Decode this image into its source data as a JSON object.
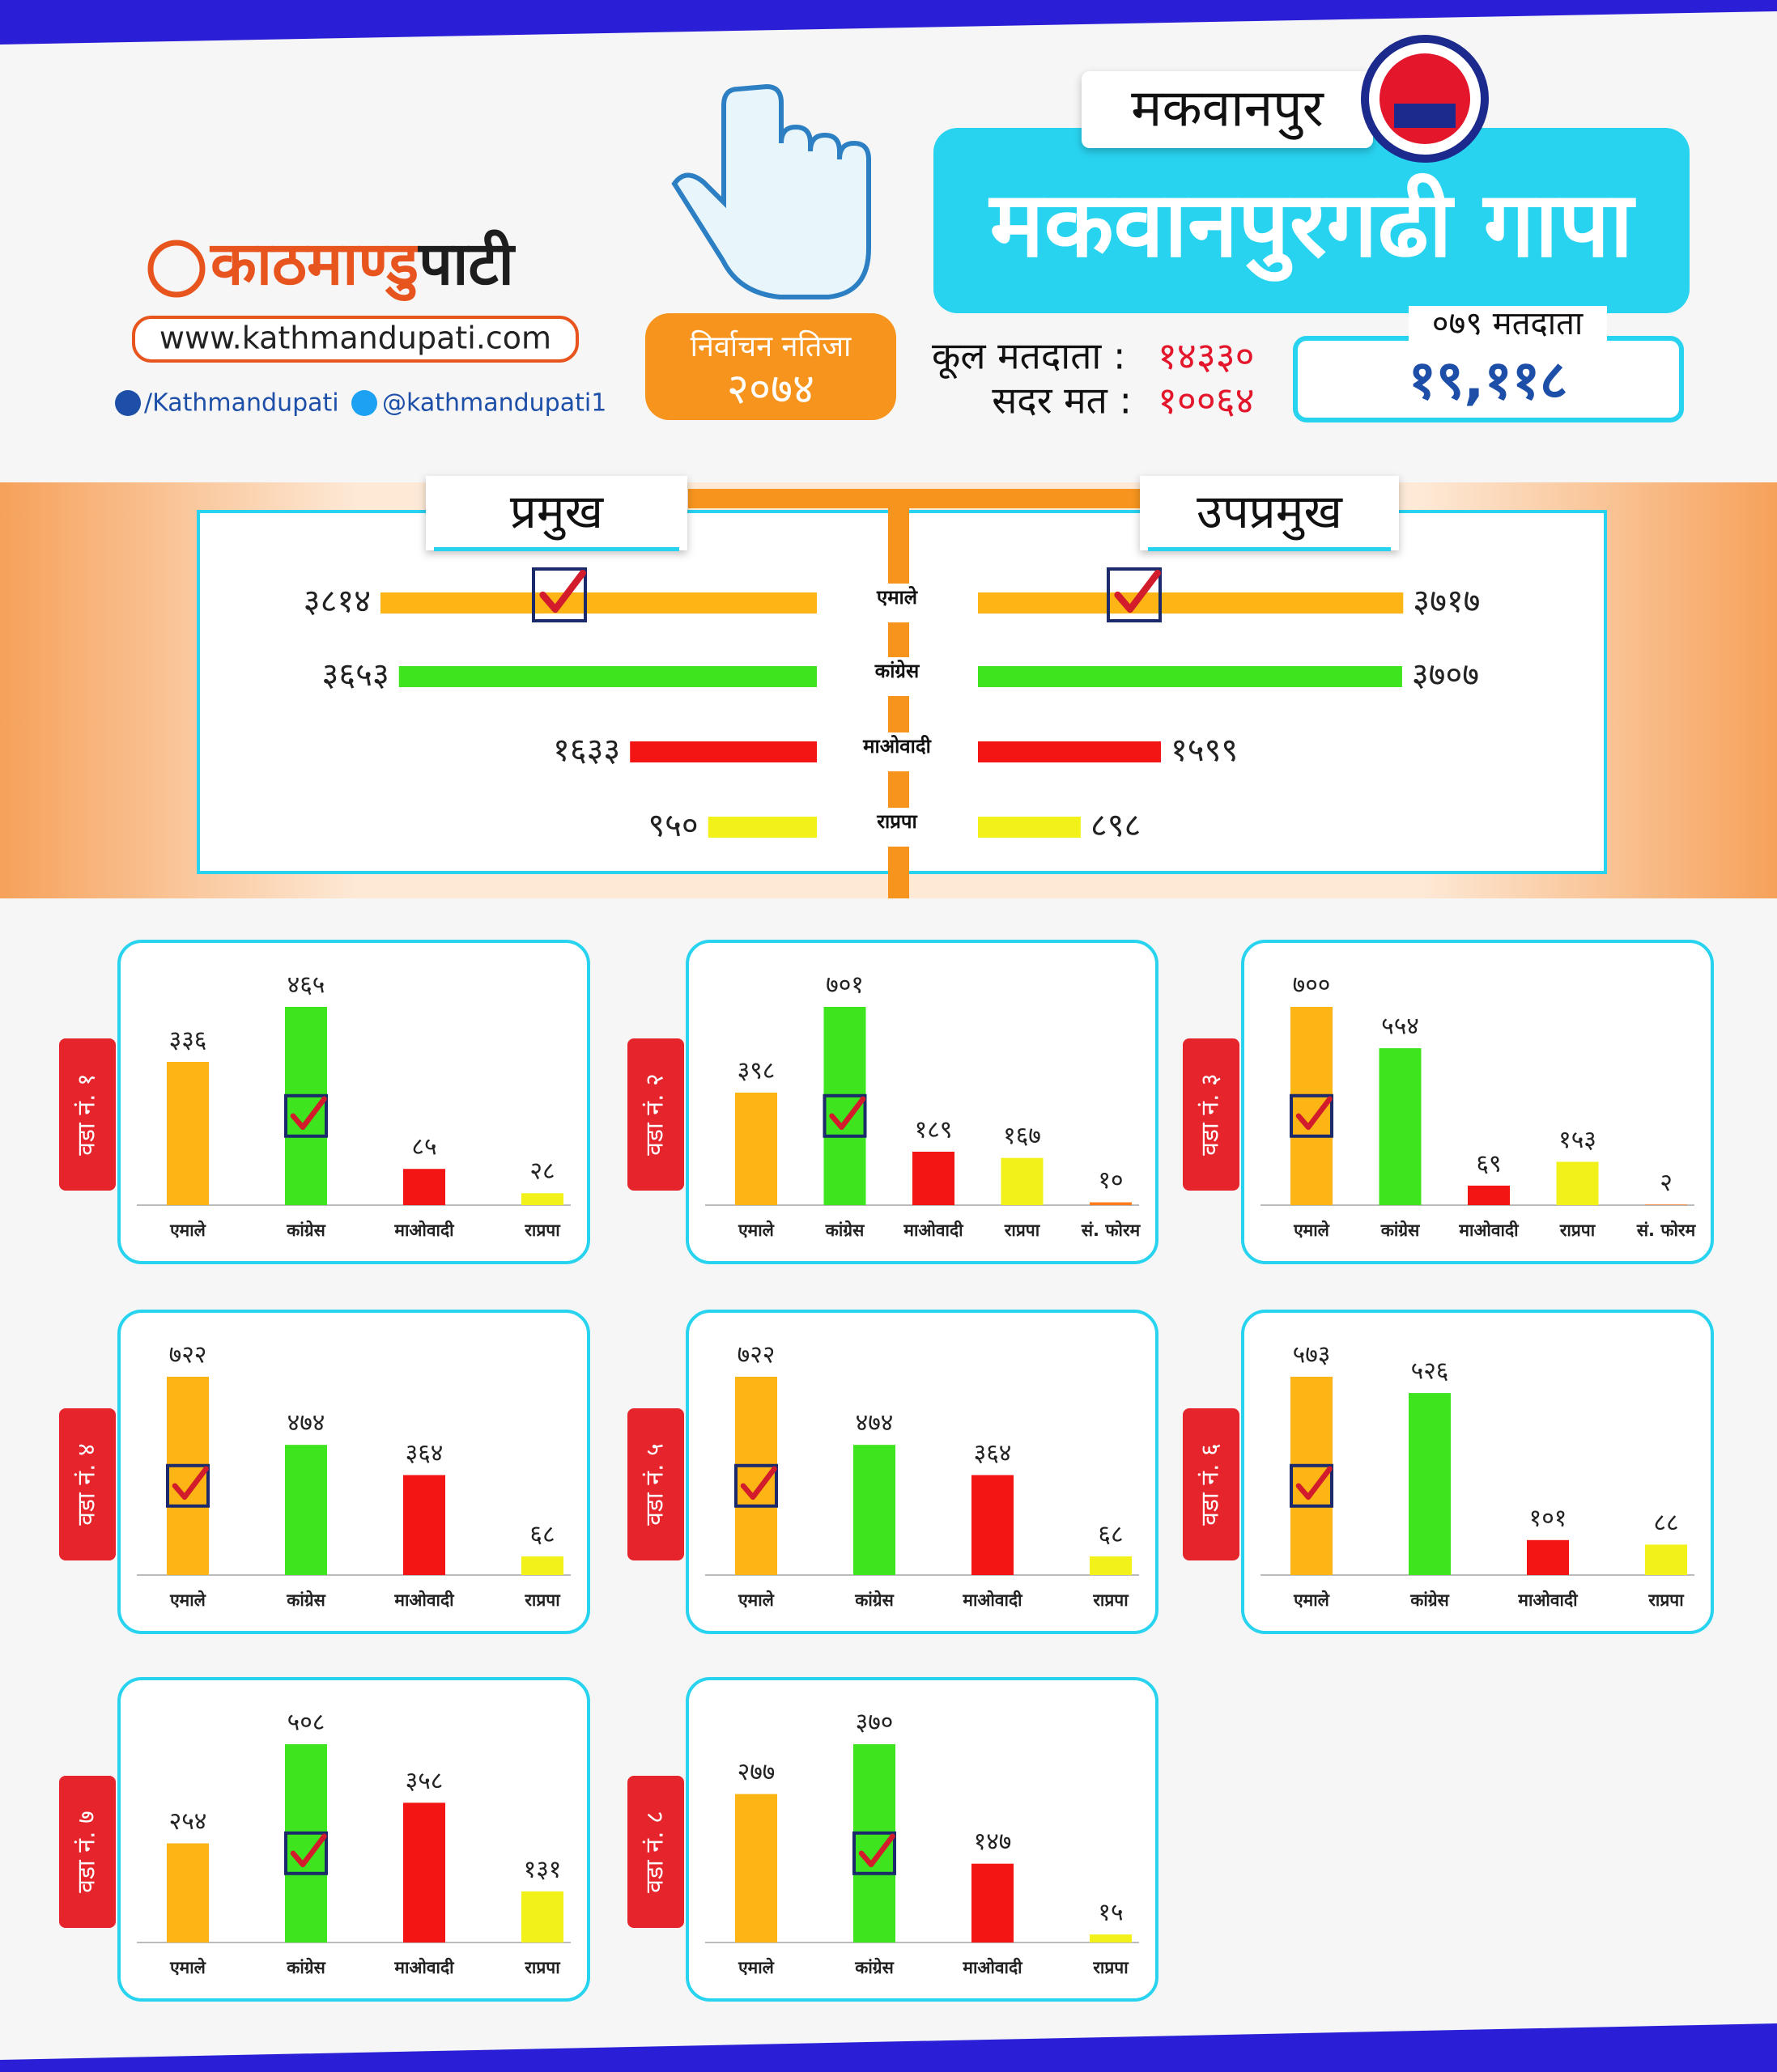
{
  "header": {
    "logo": [
      "काठमाण्डु",
      "पाटी"
    ],
    "website": "www.kathmandupati.com",
    "facebook": "/Kathmandupati",
    "twitter": "@kathmandupati1",
    "badge": [
      "निर्वाचन नतिजा",
      "२०७४"
    ],
    "region": "मकवानपुर",
    "municipality": "मकवानपुरगढी गापा",
    "voters": {
      "label": "कूल मतदाता :",
      "value": "१४३३०"
    },
    "valid": {
      "label": "सदर मत :",
      "value": "१००६४"
    },
    "voters_079": {
      "label": "०७९ मतदाता",
      "value": "१९,११८"
    }
  },
  "chart_data": [
    {
      "type": "bar",
      "horizontal": true,
      "categories": [
        "एमाले",
        "कांग्रेस",
        "माओवादी",
        "राप्रपा"
      ],
      "colors": [
        "#fdb515",
        "#3ee41e",
        "#f31414",
        "#f2f21a"
      ],
      "series": [
        {
          "name": "प्रमुख",
          "values": [
            3814,
            3653,
            1633,
            950
          ],
          "value_labels": [
            "३८१४",
            "३६५३",
            "१६३३",
            "९५०"
          ],
          "checked": 0
        },
        {
          "name": "उपप्रमुख",
          "values": [
            3717,
            3707,
            1599,
            898
          ],
          "value_labels": [
            "३७१७",
            "३७०७",
            "१५९९",
            "८९८"
          ],
          "checked": 0
        }
      ]
    },
    {
      "type": "bar",
      "title": "वडा नं. १",
      "categories": [
        "एमाले",
        "कांग्रेस",
        "माओवादी",
        "राप्रपा"
      ],
      "values": [
        336,
        465,
        85,
        28
      ],
      "value_labels": [
        "३३६",
        "४६५",
        "८५",
        "२८"
      ],
      "colors": [
        "#fdb515",
        "#3ee41e",
        "#f31414",
        "#f2f21a"
      ],
      "checked": 1
    },
    {
      "type": "bar",
      "title": "वडा नं. २",
      "categories": [
        "एमाले",
        "कांग्रेस",
        "माओवादी",
        "राप्रपा",
        "सं. फोरम"
      ],
      "values": [
        398,
        701,
        189,
        167,
        10
      ],
      "value_labels": [
        "३९८",
        "७०१",
        "१८९",
        "१६७",
        "१०"
      ],
      "colors": [
        "#fdb515",
        "#3ee41e",
        "#f31414",
        "#f2f21a",
        "#ff7a1a"
      ],
      "checked": 1
    },
    {
      "type": "bar",
      "title": "वडा नं. ३",
      "categories": [
        "एमाले",
        "कांग्रेस",
        "माओवादी",
        "राप्रपा",
        "सं. फोरम"
      ],
      "values": [
        700,
        554,
        69,
        153,
        2
      ],
      "value_labels": [
        "७००",
        "५५४",
        "६९",
        "१५३",
        "२"
      ],
      "colors": [
        "#fdb515",
        "#3ee41e",
        "#f31414",
        "#f2f21a",
        "#ff7a1a"
      ],
      "checked": 0
    },
    {
      "type": "bar",
      "title": "वडा नं. ४",
      "categories": [
        "एमाले",
        "कांग्रेस",
        "माओवादी",
        "राप्रपा"
      ],
      "values": [
        722,
        474,
        364,
        68
      ],
      "value_labels": [
        "७२२",
        "४७४",
        "३६४",
        "६८"
      ],
      "colors": [
        "#fdb515",
        "#3ee41e",
        "#f31414",
        "#f2f21a"
      ],
      "checked": 0
    },
    {
      "type": "bar",
      "title": "वडा नं. ५",
      "categories": [
        "एमाले",
        "कांग्रेस",
        "माओवादी",
        "राप्रपा"
      ],
      "values": [
        722,
        474,
        364,
        68
      ],
      "value_labels": [
        "७२२",
        "४७४",
        "३६४",
        "६८"
      ],
      "colors": [
        "#fdb515",
        "#3ee41e",
        "#f31414",
        "#f2f21a"
      ],
      "checked": 0
    },
    {
      "type": "bar",
      "title": "वडा नं. ६",
      "categories": [
        "एमाले",
        "कांग्रेस",
        "माओवादी",
        "राप्रपा"
      ],
      "values": [
        573,
        526,
        101,
        88
      ],
      "value_labels": [
        "५७३",
        "५२६",
        "१०१",
        "८८"
      ],
      "colors": [
        "#fdb515",
        "#3ee41e",
        "#f31414",
        "#f2f21a"
      ],
      "checked": 0
    },
    {
      "type": "bar",
      "title": "वडा नं. ७",
      "categories": [
        "एमाले",
        "कांग्रेस",
        "माओवादी",
        "राप्रपा"
      ],
      "values": [
        254,
        508,
        358,
        131
      ],
      "value_labels": [
        "२५४",
        "५०८",
        "३५८",
        "१३१"
      ],
      "colors": [
        "#fdb515",
        "#3ee41e",
        "#f31414",
        "#f2f21a"
      ],
      "checked": 1
    },
    {
      "type": "bar",
      "title": "वडा नं. ८",
      "categories": [
        "एमाले",
        "कांग्रेस",
        "माओवादी",
        "राप्रपा"
      ],
      "values": [
        277,
        370,
        147,
        15
      ],
      "value_labels": [
        "२७७",
        "३७०",
        "१४७",
        "१५"
      ],
      "colors": [
        "#fdb515",
        "#3ee41e",
        "#f31414",
        "#f2f21a"
      ],
      "checked": 1
    }
  ]
}
